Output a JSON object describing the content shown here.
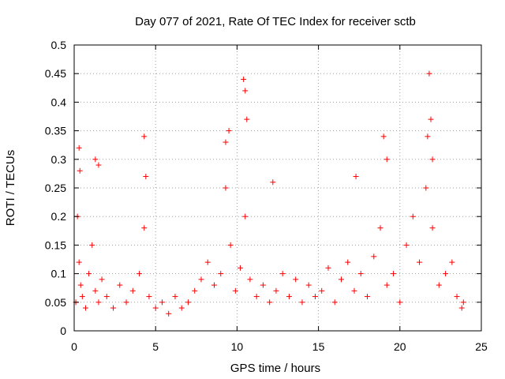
{
  "chart_data": {
    "type": "scatter",
    "title": "Day 077 of 2021, Rate Of TEC Index for receiver sctb",
    "xlabel": "GPS time / hours",
    "ylabel": "ROTI / TECUs",
    "xlim": [
      0,
      25
    ],
    "ylim": [
      0,
      0.5
    ],
    "x_ticks": [
      "0",
      "5",
      "10",
      "15",
      "20",
      "25"
    ],
    "y_ticks": [
      "0",
      "0.05",
      "0.1",
      "0.15",
      "0.2",
      "0.25",
      "0.3",
      "0.35",
      "0.4",
      "0.45",
      "0.5"
    ],
    "grid": true,
    "marker": "plus",
    "color": "#ff0000",
    "series": [
      {
        "x": [
          0.1,
          0.2,
          0.3,
          0.4,
          0.5,
          0.7,
          0.9,
          1.1,
          1.3,
          1.5,
          1.7,
          2.0,
          2.4,
          2.8,
          3.2,
          3.6,
          4.0,
          4.3,
          4.6,
          5.0,
          5.4,
          5.8,
          6.2,
          6.6,
          7.0,
          7.4,
          7.8,
          8.2,
          8.6,
          9.0,
          9.3,
          9.6,
          9.9,
          10.2,
          10.5,
          10.8,
          11.2,
          11.6,
          12.0,
          12.4,
          12.8,
          13.2,
          13.6,
          14.0,
          14.4,
          14.8,
          15.2,
          15.6,
          16.0,
          16.4,
          16.8,
          17.2,
          17.6,
          18.0,
          18.4,
          18.8,
          19.2,
          19.6,
          20.0,
          20.4,
          20.8,
          21.2,
          21.6,
          22.0,
          22.4,
          22.8,
          23.2,
          23.5,
          23.8,
          23.9,
          0.3,
          0.35,
          1.3,
          1.5,
          4.3,
          4.4,
          9.3,
          9.5,
          10.4,
          10.5,
          10.6,
          21.8,
          21.9,
          21.7,
          22.0,
          19.0,
          19.2,
          17.3,
          12.2
        ],
        "y": [
          0.05,
          0.2,
          0.12,
          0.08,
          0.06,
          0.04,
          0.1,
          0.15,
          0.07,
          0.05,
          0.09,
          0.06,
          0.04,
          0.08,
          0.05,
          0.07,
          0.1,
          0.18,
          0.06,
          0.04,
          0.05,
          0.03,
          0.06,
          0.04,
          0.05,
          0.07,
          0.09,
          0.12,
          0.08,
          0.1,
          0.25,
          0.15,
          0.07,
          0.11,
          0.2,
          0.09,
          0.06,
          0.08,
          0.05,
          0.07,
          0.1,
          0.06,
          0.09,
          0.05,
          0.08,
          0.06,
          0.07,
          0.11,
          0.05,
          0.09,
          0.12,
          0.07,
          0.1,
          0.06,
          0.13,
          0.18,
          0.08,
          0.1,
          0.05,
          0.15,
          0.2,
          0.12,
          0.25,
          0.18,
          0.08,
          0.1,
          0.12,
          0.06,
          0.04,
          0.05,
          0.32,
          0.28,
          0.3,
          0.29,
          0.34,
          0.27,
          0.33,
          0.35,
          0.44,
          0.42,
          0.37,
          0.45,
          0.37,
          0.34,
          0.3,
          0.34,
          0.3,
          0.27,
          0.26
        ]
      }
    ]
  }
}
